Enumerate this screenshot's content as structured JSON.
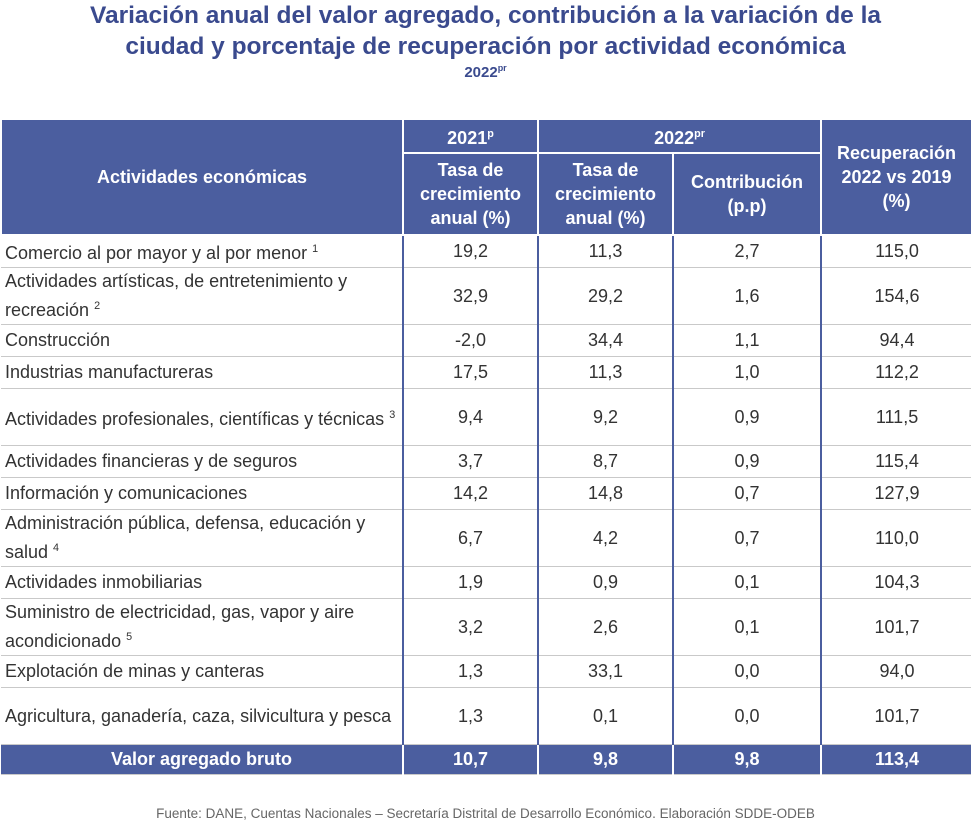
{
  "title_lines": [
    "Variación anual del valor agregado, contribución a la variación de la",
    "ciudad y porcentaje de recuperación por actividad económica"
  ],
  "year": "2022",
  "year_note": "pr",
  "table": {
    "header": {
      "activity": "Actividades económicas",
      "groups": [
        {
          "label": "2021",
          "note": "p"
        },
        {
          "label": "2022",
          "note": "pr"
        }
      ],
      "columns": [
        "Tasa de crecimiento anual (%)",
        "Tasa de crecimiento anual (%)",
        "Contribución (p.p)",
        "Recuperación 2022 vs 2019 (%)"
      ]
    },
    "rows": [
      {
        "activity": "Comercio al por mayor y al por menor",
        "note": "1",
        "values": [
          "19,2",
          "11,3",
          "2,7",
          "115,0"
        ]
      },
      {
        "activity": "Actividades artísticas, de entretenimiento y recreación",
        "note": "2",
        "values": [
          "32,9",
          "29,2",
          "1,6",
          "154,6"
        ]
      },
      {
        "activity": "Construcción",
        "values": [
          "-2,0",
          "34,4",
          "1,1",
          "94,4"
        ]
      },
      {
        "activity": "Industrias manufactureras",
        "values": [
          "17,5",
          "11,3",
          "1,0",
          "112,2"
        ]
      },
      {
        "activity": "Actividades profesionales, científicas y técnicas",
        "note": "3",
        "values": [
          "9,4",
          "9,2",
          "0,9",
          "111,5"
        ]
      },
      {
        "activity": "Actividades financieras y de seguros",
        "values": [
          "3,7",
          "8,7",
          "0,9",
          "115,4"
        ]
      },
      {
        "activity": "Información y comunicaciones",
        "values": [
          "14,2",
          "14,8",
          "0,7",
          "127,9"
        ]
      },
      {
        "activity": "Administración pública, defensa, educación y salud",
        "note": "4",
        "values": [
          "6,7",
          "4,2",
          "0,7",
          "110,0"
        ]
      },
      {
        "activity": "Actividades inmobiliarias",
        "values": [
          "1,9",
          "0,9",
          "0,1",
          "104,3"
        ]
      },
      {
        "activity": "Suministro de electricidad, gas, vapor y aire acondicionado",
        "note": "5",
        "values": [
          "3,2",
          "2,6",
          "0,1",
          "101,7"
        ]
      },
      {
        "activity": "Explotación de minas y canteras",
        "values": [
          "1,3",
          "33,1",
          "0,0",
          "94,0"
        ]
      },
      {
        "activity": "Agricultura, ganadería, caza, silvicultura y pesca",
        "values": [
          "1,3",
          "0,1",
          "0,0",
          "101,7"
        ]
      }
    ],
    "total": {
      "activity": "Valor agregado bruto",
      "values": [
        "10,7",
        "9,8",
        "9,8",
        "113,4"
      ]
    }
  },
  "source": "Fuente: DANE, Cuentas Nacionales – Secretaría Distrital de Desarrollo Económico. Elaboración SDDE-ODEB"
}
